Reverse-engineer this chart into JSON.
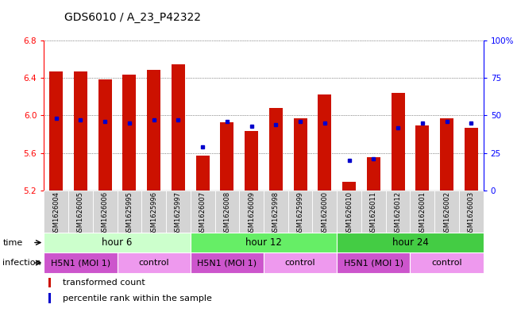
{
  "title": "GDS6010 / A_23_P42322",
  "samples": [
    "GSM1626004",
    "GSM1626005",
    "GSM1626006",
    "GSM1625995",
    "GSM1625996",
    "GSM1625997",
    "GSM1626007",
    "GSM1626008",
    "GSM1626009",
    "GSM1625998",
    "GSM1625999",
    "GSM1626000",
    "GSM1626010",
    "GSM1626011",
    "GSM1626012",
    "GSM1626001",
    "GSM1626002",
    "GSM1626003"
  ],
  "transformed_counts": [
    6.47,
    6.47,
    6.385,
    6.44,
    6.49,
    6.55,
    5.575,
    5.93,
    5.835,
    6.08,
    5.97,
    6.22,
    5.295,
    5.55,
    6.24,
    5.895,
    5.97,
    5.87
  ],
  "percentile_ranks": [
    48,
    47,
    46,
    45,
    47,
    47,
    29,
    46,
    43,
    44,
    46,
    45,
    20,
    21,
    42,
    45,
    46,
    45
  ],
  "ymin": 5.2,
  "ymax": 6.8,
  "yticks": [
    5.2,
    5.6,
    6.0,
    6.4,
    6.8
  ],
  "pct_ticks": [
    0,
    25,
    50,
    75,
    100
  ],
  "bar_color": "#cc1100",
  "dot_color": "#0000cc",
  "groups": [
    {
      "label": "hour 6",
      "start": 0,
      "end": 6,
      "color": "#ccffcc"
    },
    {
      "label": "hour 12",
      "start": 6,
      "end": 12,
      "color": "#66ee66"
    },
    {
      "label": "hour 24",
      "start": 12,
      "end": 18,
      "color": "#44cc44"
    }
  ],
  "infections": [
    {
      "label": "H5N1 (MOI 1)",
      "start": 0,
      "end": 3,
      "color": "#cc55cc"
    },
    {
      "label": "control",
      "start": 3,
      "end": 6,
      "color": "#ee99ee"
    },
    {
      "label": "H5N1 (MOI 1)",
      "start": 6,
      "end": 9,
      "color": "#cc55cc"
    },
    {
      "label": "control",
      "start": 9,
      "end": 12,
      "color": "#ee99ee"
    },
    {
      "label": "H5N1 (MOI 1)",
      "start": 12,
      "end": 15,
      "color": "#cc55cc"
    },
    {
      "label": "control",
      "start": 15,
      "end": 18,
      "color": "#ee99ee"
    }
  ],
  "grid_color": "#333333",
  "background_color": "#ffffff",
  "title_fontsize": 10,
  "tick_fontsize": 7.5,
  "xticklabel_fontsize": 6,
  "row_label_fontsize": 8,
  "group_label_fontsize": 8.5,
  "legend_fontsize": 8
}
